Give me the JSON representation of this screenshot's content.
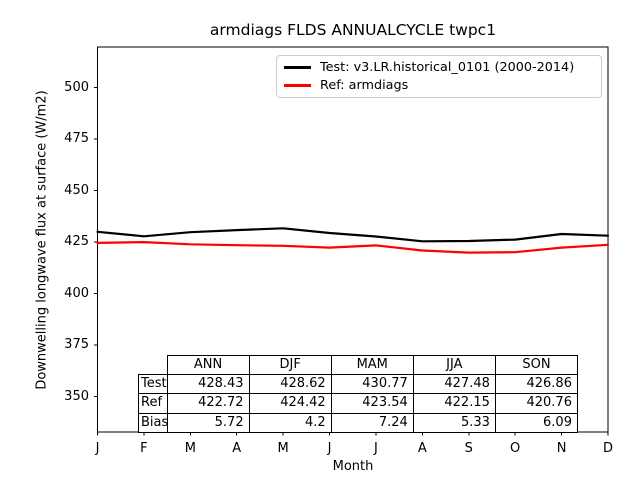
{
  "chart_data": {
    "type": "line",
    "title": "armdiags FLDS ANNUALCYCLE twpc1",
    "xlabel": "Month",
    "ylabel": "Downwelling longwave flux at surface (W/m2)",
    "x_tick_labels": [
      "J",
      "F",
      "M",
      "A",
      "M",
      "J",
      "J",
      "A",
      "S",
      "O",
      "N",
      "D"
    ],
    "y_ticks": [
      350,
      375,
      400,
      425,
      450,
      475,
      500
    ],
    "ylim": [
      332.8,
      519.7
    ],
    "grid": false,
    "legend_position": "upper center",
    "series": [
      {
        "name": "Test: v3.LR.historical_0101 (2000-2014)",
        "color": "#000000",
        "values": [
          430.0,
          427.8,
          429.8,
          430.8,
          431.7,
          429.4,
          427.7,
          425.4,
          425.5,
          426.2,
          428.9,
          428.1
        ]
      },
      {
        "name": "Ref: armdiags",
        "color": "#ff0000",
        "values": [
          424.6,
          425.0,
          423.9,
          423.5,
          423.2,
          422.3,
          423.4,
          420.9,
          419.9,
          420.1,
          422.3,
          423.7
        ]
      }
    ],
    "stats_table": {
      "columns": [
        "ANN",
        "DJF",
        "MAM",
        "JJA",
        "SON"
      ],
      "rows": [
        {
          "label": "Test",
          "values": [
            "428.43",
            "428.62",
            "430.77",
            "427.48",
            "426.86"
          ]
        },
        {
          "label": "Ref",
          "values": [
            "422.72",
            "424.42",
            "423.54",
            "422.15",
            "420.76"
          ]
        },
        {
          "label": "Bias",
          "values": [
            "5.72",
            "4.2",
            "7.24",
            "5.33",
            "6.09"
          ]
        }
      ]
    }
  }
}
